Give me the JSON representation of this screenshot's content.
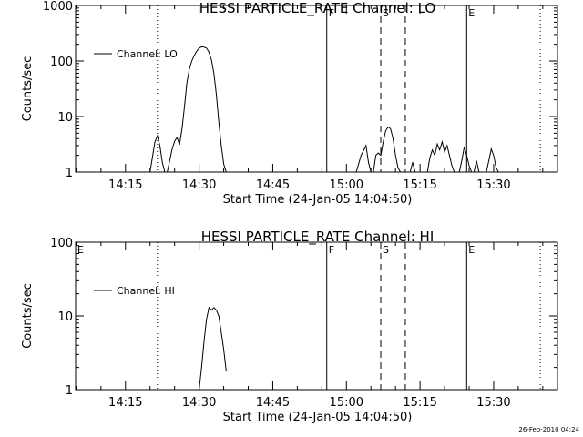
{
  "footer": {
    "timestamp": "26-Feb-2010 04:24"
  },
  "chart_data": [
    {
      "type": "line",
      "title": "HESSI PARTICLE_RATE Channel: LO",
      "xlabel": "Start Time (24-Jan-05 14:04:50)",
      "ylabel": "Counts/sec",
      "yscale": "log",
      "xlim": [
        "14:04:50",
        "15:43:00"
      ],
      "ylim": [
        1,
        1000
      ],
      "xticks": [
        "14:15",
        "14:30",
        "14:45",
        "15:00",
        "15:15",
        "15:30"
      ],
      "yticks": [
        "1",
        "10",
        "100",
        "1000"
      ],
      "legend": {
        "label": "Channel: LO",
        "position": "top-left"
      },
      "markers": [
        {
          "time": "14:21:30",
          "style": "dotted",
          "label": ""
        },
        {
          "time": "14:56:00",
          "style": "solid",
          "label": "F"
        },
        {
          "time": "15:07:00",
          "style": "dashed",
          "label": "S"
        },
        {
          "time": "15:12:00",
          "style": "dashed",
          "label": ""
        },
        {
          "time": "15:24:30",
          "style": "solid",
          "label": "E"
        },
        {
          "time": "15:39:30",
          "style": "dotted",
          "label": ""
        }
      ],
      "series": [
        {
          "name": "Channel: LO",
          "segments": [
            [
              [
                "14:20:00",
                1
              ],
              [
                "14:21:00",
                3.5
              ],
              [
                "14:21:30",
                4.5
              ],
              [
                "14:22:00",
                3
              ],
              [
                "14:22:30",
                1.5
              ],
              [
                "14:23:00",
                1
              ]
            ],
            [
              [
                "14:23:30",
                1
              ],
              [
                "14:24:00",
                1.6
              ],
              [
                "14:24:30",
                2.6
              ],
              [
                "14:25:00",
                3.6
              ],
              [
                "14:25:30",
                4.2
              ],
              [
                "14:26:00",
                3.1
              ],
              [
                "14:26:30",
                6
              ],
              [
                "14:27:00",
                15
              ],
              [
                "14:27:30",
                40
              ],
              [
                "14:28:00",
                70
              ],
              [
                "14:28:30",
                100
              ],
              [
                "14:29:00",
                125
              ],
              [
                "14:29:30",
                150
              ],
              [
                "14:30:00",
                170
              ],
              [
                "14:30:30",
                180
              ],
              [
                "14:31:00",
                178
              ],
              [
                "14:31:30",
                170
              ],
              [
                "14:32:00",
                145
              ],
              [
                "14:32:30",
                105
              ],
              [
                "14:33:00",
                60
              ],
              [
                "14:33:30",
                25
              ],
              [
                "14:34:00",
                8
              ],
              [
                "14:34:30",
                3
              ],
              [
                "14:35:00",
                1.4
              ],
              [
                "14:35:30",
                1
              ]
            ],
            [
              [
                "15:02:00",
                1
              ],
              [
                "15:03:00",
                2
              ],
              [
                "15:04:00",
                3
              ],
              [
                "15:04:30",
                1.5
              ],
              [
                "15:05:00",
                1
              ]
            ],
            [
              [
                "15:05:30",
                1
              ],
              [
                "15:06:00",
                2
              ],
              [
                "15:06:30",
                2.2
              ],
              [
                "15:07:00",
                2
              ],
              [
                "15:07:30",
                3.5
              ],
              [
                "15:08:00",
                5.5
              ],
              [
                "15:08:30",
                6.5
              ],
              [
                "15:09:00",
                6
              ],
              [
                "15:09:30",
                4
              ],
              [
                "15:10:00",
                2
              ],
              [
                "15:10:30",
                1.2
              ],
              [
                "15:11:00",
                1
              ]
            ],
            [
              [
                "15:13:00",
                1
              ],
              [
                "15:13:30",
                1.5
              ],
              [
                "15:14:00",
                1
              ]
            ],
            [
              [
                "15:16:30",
                1
              ],
              [
                "15:17:00",
                1.8
              ],
              [
                "15:17:30",
                2.5
              ],
              [
                "15:18:00",
                2
              ],
              [
                "15:18:30",
                3.2
              ],
              [
                "15:19:00",
                2.5
              ],
              [
                "15:19:30",
                3.5
              ],
              [
                "15:20:00",
                2.3
              ],
              [
                "15:20:30",
                3
              ],
              [
                "15:21:00",
                2
              ],
              [
                "15:21:30",
                1.3
              ],
              [
                "15:22:00",
                1
              ]
            ],
            [
              [
                "15:23:00",
                1
              ],
              [
                "15:23:30",
                1.6
              ],
              [
                "15:24:00",
                2.8
              ],
              [
                "15:24:30",
                2
              ],
              [
                "15:25:00",
                1.3
              ],
              [
                "15:25:30",
                1
              ]
            ],
            [
              [
                "15:26:00",
                1
              ],
              [
                "15:26:30",
                1.6
              ],
              [
                "15:27:00",
                1
              ]
            ],
            [
              [
                "15:28:30",
                1
              ],
              [
                "15:29:00",
                1.6
              ],
              [
                "15:29:30",
                2.6
              ],
              [
                "15:30:00",
                2
              ],
              [
                "15:30:30",
                1.2
              ],
              [
                "15:31:00",
                1
              ]
            ]
          ]
        }
      ]
    },
    {
      "type": "line",
      "title": "HESSI PARTICLE_RATE Channel: HI",
      "xlabel": "Start Time (24-Jan-05 14:04:50)",
      "ylabel": "Counts/sec",
      "yscale": "log",
      "xlim": [
        "14:04:50",
        "15:43:00"
      ],
      "ylim": [
        1,
        100
      ],
      "xticks": [
        "14:15",
        "14:30",
        "14:45",
        "15:00",
        "15:15",
        "15:30"
      ],
      "yticks": [
        "1",
        "10",
        "100"
      ],
      "legend": {
        "label": "Channel: HI",
        "position": "top-left"
      },
      "markers": [
        {
          "time": "14:04:50",
          "style": "solid",
          "label": "E"
        },
        {
          "time": "14:21:30",
          "style": "dotted",
          "label": ""
        },
        {
          "time": "14:56:00",
          "style": "solid",
          "label": "F"
        },
        {
          "time": "15:07:00",
          "style": "dashed",
          "label": "S"
        },
        {
          "time": "15:12:00",
          "style": "dashed",
          "label": ""
        },
        {
          "time": "15:24:30",
          "style": "solid",
          "label": "E"
        },
        {
          "time": "15:39:30",
          "style": "dotted",
          "label": ""
        }
      ],
      "series": [
        {
          "name": "Channel: HI",
          "segments": [
            [
              [
                "14:30:00",
                1
              ],
              [
                "14:30:30",
                2
              ],
              [
                "14:31:00",
                4.5
              ],
              [
                "14:31:30",
                9
              ],
              [
                "14:32:00",
                13
              ],
              [
                "14:32:30",
                12
              ],
              [
                "14:33:00",
                13
              ],
              [
                "14:33:30",
                12
              ],
              [
                "14:34:00",
                10
              ],
              [
                "14:34:30",
                6
              ],
              [
                "14:35:00",
                3.5
              ],
              [
                "14:35:30",
                1.8
              ]
            ]
          ]
        }
      ]
    }
  ]
}
